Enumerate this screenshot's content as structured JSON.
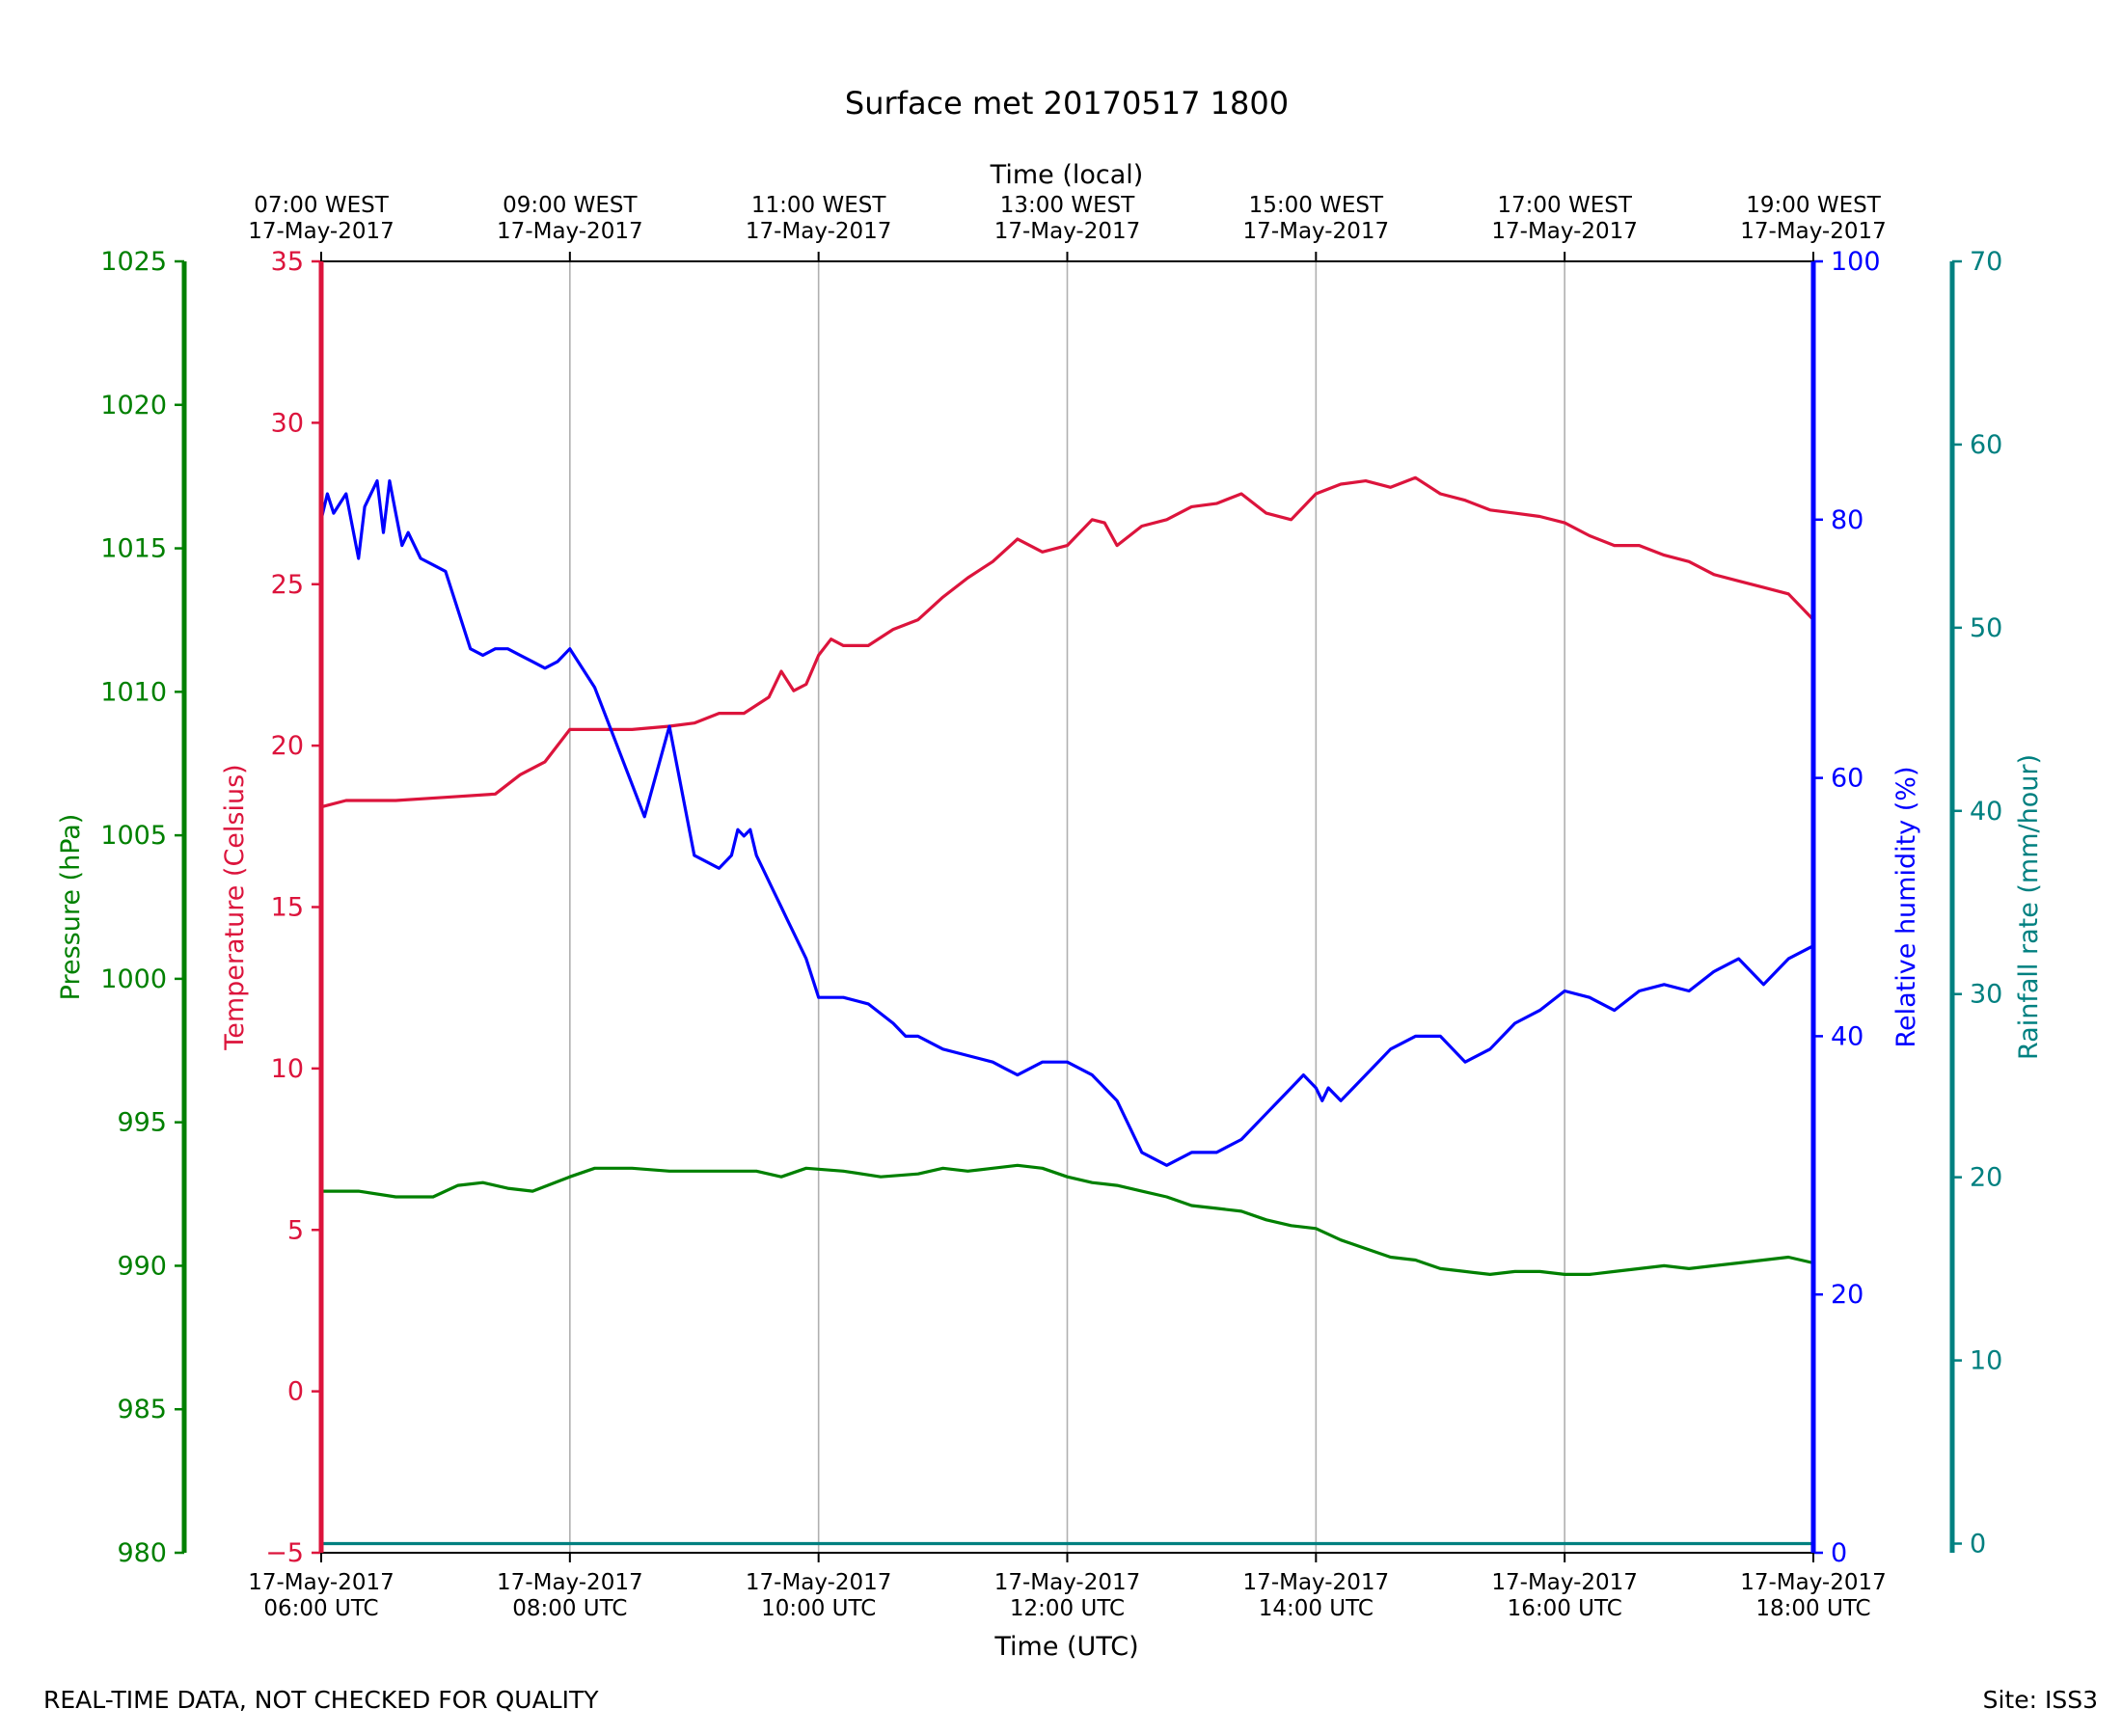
{
  "chart_data": {
    "type": "line",
    "title": "Surface met 20170517 1800",
    "top_axis": {
      "label": "Time (local)",
      "ticks": [
        {
          "hour": 6,
          "line1": "07:00 WEST",
          "line2": "17-May-2017"
        },
        {
          "hour": 8,
          "line1": "09:00 WEST",
          "line2": "17-May-2017"
        },
        {
          "hour": 10,
          "line1": "11:00 WEST",
          "line2": "17-May-2017"
        },
        {
          "hour": 12,
          "line1": "13:00 WEST",
          "line2": "17-May-2017"
        },
        {
          "hour": 14,
          "line1": "15:00 WEST",
          "line2": "17-May-2017"
        },
        {
          "hour": 16,
          "line1": "17:00 WEST",
          "line2": "17-May-2017"
        },
        {
          "hour": 18,
          "line1": "19:00 WEST",
          "line2": "17-May-2017"
        }
      ]
    },
    "bottom_axis": {
      "label": "Time (UTC)",
      "xlim": [
        6,
        18
      ],
      "ticks": [
        {
          "hour": 6,
          "line1": "17-May-2017",
          "line2": "06:00 UTC"
        },
        {
          "hour": 8,
          "line1": "17-May-2017",
          "line2": "08:00 UTC"
        },
        {
          "hour": 10,
          "line1": "17-May-2017",
          "line2": "10:00 UTC"
        },
        {
          "hour": 12,
          "line1": "17-May-2017",
          "line2": "12:00 UTC"
        },
        {
          "hour": 14,
          "line1": "17-May-2017",
          "line2": "14:00 UTC"
        },
        {
          "hour": 16,
          "line1": "17-May-2017",
          "line2": "16:00 UTC"
        },
        {
          "hour": 18,
          "line1": "17-May-2017",
          "line2": "18:00 UTC"
        }
      ]
    },
    "axes": {
      "pressure": {
        "label": "Pressure (hPa)",
        "ylim": [
          980,
          1025
        ],
        "ticks": [
          980,
          985,
          990,
          995,
          1000,
          1005,
          1010,
          1015,
          1020,
          1025
        ],
        "color": "#008000"
      },
      "temperature": {
        "label": "Temperature (Celsius)",
        "ylim": [
          -5,
          35
        ],
        "ticks": [
          -5,
          0,
          5,
          10,
          15,
          20,
          25,
          30,
          35
        ],
        "tick_labels": [
          "−5",
          "0",
          "5",
          "10",
          "15",
          "20",
          "25",
          "30",
          "35"
        ],
        "color": "#dc143c"
      },
      "humidity": {
        "label": "Relative humidity (%)",
        "ylim": [
          0,
          100
        ],
        "ticks": [
          0,
          20,
          40,
          60,
          80,
          100
        ],
        "color": "#0000ff"
      },
      "rainfall": {
        "label": "Rainfall rate (mm/hour)",
        "ylim": [
          -0.5,
          70
        ],
        "ticks": [
          0,
          10,
          20,
          30,
          40,
          50,
          60,
          70
        ],
        "color": "#008080"
      }
    },
    "series": [
      {
        "name": "Temperature",
        "axis": "temperature",
        "color": "#dc143c",
        "x": [
          6.0,
          6.2,
          6.6,
          7.0,
          7.4,
          7.6,
          7.8,
          7.9,
          8.0,
          8.2,
          8.5,
          8.8,
          9.0,
          9.2,
          9.4,
          9.6,
          9.7,
          9.8,
          9.9,
          10.0,
          10.1,
          10.2,
          10.4,
          10.6,
          10.8,
          11.0,
          11.2,
          11.4,
          11.6,
          11.8,
          12.0,
          12.2,
          12.3,
          12.4,
          12.6,
          12.8,
          13.0,
          13.2,
          13.4,
          13.6,
          13.8,
          14.0,
          14.2,
          14.4,
          14.6,
          14.8,
          15.0,
          15.2,
          15.4,
          15.6,
          15.8,
          16.0,
          16.2,
          16.4,
          16.6,
          16.8,
          17.0,
          17.2,
          17.4,
          17.6,
          17.8,
          17.9,
          18.0
        ],
        "values": [
          18.1,
          18.3,
          18.3,
          18.4,
          18.5,
          19.1,
          19.5,
          20.0,
          20.5,
          20.5,
          20.5,
          20.6,
          20.7,
          21.0,
          21.0,
          21.5,
          22.3,
          21.7,
          21.9,
          22.8,
          23.3,
          23.1,
          23.1,
          23.6,
          23.9,
          24.6,
          25.2,
          25.7,
          26.4,
          26.0,
          26.2,
          27.0,
          26.9,
          26.2,
          26.8,
          27.0,
          27.4,
          27.5,
          27.8,
          27.2,
          27.0,
          27.8,
          28.1,
          28.2,
          28.0,
          28.3,
          27.8,
          27.6,
          27.3,
          27.2,
          27.1,
          26.9,
          26.5,
          26.2,
          26.2,
          25.9,
          25.7,
          25.3,
          25.1,
          24.9,
          24.7,
          24.3,
          23.9
        ]
      },
      {
        "name": "Relative humidity",
        "axis": "humidity",
        "color": "#0000ff",
        "x": [
          6.0,
          6.05,
          6.1,
          6.2,
          6.3,
          6.35,
          6.45,
          6.5,
          6.55,
          6.6,
          6.65,
          6.7,
          6.8,
          6.9,
          7.0,
          7.1,
          7.2,
          7.3,
          7.4,
          7.5,
          7.6,
          7.7,
          7.8,
          7.9,
          8.0,
          8.2,
          8.4,
          8.6,
          8.8,
          9.0,
          9.2,
          9.3,
          9.35,
          9.4,
          9.45,
          9.5,
          9.55,
          9.6,
          9.65,
          9.7,
          9.75,
          9.8,
          9.9,
          10.0,
          10.2,
          10.4,
          10.6,
          10.7,
          10.8,
          11.0,
          11.2,
          11.4,
          11.5,
          11.6,
          11.8,
          12.0,
          12.2,
          12.4,
          12.6,
          12.8,
          13.0,
          13.2,
          13.4,
          13.6,
          13.8,
          13.9,
          14.0,
          14.05,
          14.1,
          14.2,
          14.4,
          14.6,
          14.8,
          15.0,
          15.2,
          15.4,
          15.6,
          15.8,
          16.0,
          16.2,
          16.4,
          16.6,
          16.8,
          17.0,
          17.2,
          17.4,
          17.6,
          17.8,
          18.0
        ],
        "values": [
          80.0,
          82.0,
          80.5,
          82.0,
          77.0,
          81.0,
          83.0,
          79.0,
          83.0,
          80.5,
          78.0,
          79.0,
          77.0,
          76.5,
          76.0,
          73.0,
          70.0,
          69.5,
          70.0,
          70.0,
          69.5,
          69.0,
          68.5,
          69.0,
          70.0,
          67.0,
          62.0,
          57.0,
          64.0,
          54.0,
          53.0,
          54.0,
          56.0,
          55.5,
          56.0,
          54.0,
          53.0,
          52.0,
          51.0,
          50.0,
          49.0,
          48.0,
          46.0,
          43.0,
          43.0,
          42.5,
          41.0,
          40.0,
          40.0,
          39.0,
          38.5,
          38.0,
          37.5,
          37.0,
          38.0,
          38.0,
          37.0,
          35.0,
          31.0,
          30.0,
          31.0,
          31.0,
          32.0,
          34.0,
          36.0,
          37.0,
          36.0,
          35.0,
          36.0,
          35.0,
          37.0,
          39.0,
          40.0,
          40.0,
          38.0,
          39.0,
          41.0,
          42.0,
          43.5,
          43.0,
          42.0,
          43.5,
          44.0,
          43.5,
          45.0,
          46.0,
          44.0,
          46.0,
          47.0
        ]
      },
      {
        "name": "Pressure",
        "axis": "pressure",
        "color": "#008000",
        "x": [
          6.0,
          6.3,
          6.6,
          6.9,
          7.1,
          7.3,
          7.5,
          7.7,
          8.0,
          8.2,
          8.5,
          8.8,
          9.0,
          9.2,
          9.5,
          9.7,
          9.9,
          10.2,
          10.5,
          10.8,
          11.0,
          11.2,
          11.4,
          11.6,
          11.8,
          12.0,
          12.2,
          12.4,
          12.6,
          12.8,
          13.0,
          13.2,
          13.4,
          13.6,
          13.8,
          14.0,
          14.2,
          14.4,
          14.6,
          14.8,
          15.0,
          15.2,
          15.4,
          15.6,
          15.8,
          16.0,
          16.2,
          16.4,
          16.6,
          16.8,
          17.0,
          17.2,
          17.4,
          17.6,
          17.8,
          18.0
        ],
        "values": [
          992.6,
          992.6,
          992.4,
          992.4,
          992.8,
          992.9,
          992.7,
          992.6,
          993.1,
          993.4,
          993.4,
          993.3,
          993.3,
          993.3,
          993.3,
          993.1,
          993.4,
          993.3,
          993.1,
          993.2,
          993.4,
          993.3,
          993.4,
          993.5,
          993.4,
          993.1,
          992.9,
          992.8,
          992.6,
          992.4,
          992.1,
          992.0,
          991.9,
          991.6,
          991.4,
          991.3,
          990.9,
          990.6,
          990.3,
          990.2,
          989.9,
          989.8,
          989.7,
          989.8,
          989.8,
          989.7,
          989.7,
          989.8,
          989.9,
          990.0,
          989.9,
          990.0,
          990.1,
          990.2,
          990.3,
          990.1
        ]
      },
      {
        "name": "Rainfall rate",
        "axis": "rainfall",
        "color": "#008080",
        "x": [
          6.0,
          18.0
        ],
        "values": [
          0.0,
          0.0
        ]
      }
    ]
  },
  "footer": {
    "left": "REAL-TIME DATA, NOT CHECKED FOR QUALITY",
    "right": "Site: ISS3"
  }
}
